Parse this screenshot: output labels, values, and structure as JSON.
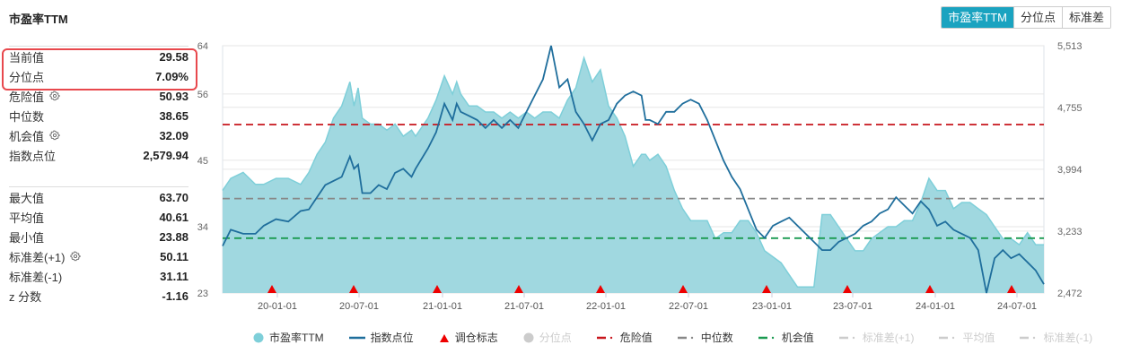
{
  "title": "市盈率TTM",
  "tabs": [
    {
      "label": "市盈率TTM",
      "active": true
    },
    {
      "label": "分位点",
      "active": false
    },
    {
      "label": "标准差",
      "active": false
    }
  ],
  "stats_top": [
    {
      "label": "当前值",
      "value": "29.58",
      "gear": false
    },
    {
      "label": "分位点",
      "value": "7.09%",
      "gear": false
    },
    {
      "label": "危险值",
      "value": "50.93",
      "gear": true
    },
    {
      "label": "中位数",
      "value": "38.65",
      "gear": false
    },
    {
      "label": "机会值",
      "value": "32.09",
      "gear": true
    },
    {
      "label": "指数点位",
      "value": "2,579.94",
      "gear": false
    }
  ],
  "stats_bottom": [
    {
      "label": "最大值",
      "value": "63.70",
      "gear": false
    },
    {
      "label": "平均值",
      "value": "40.61",
      "gear": false
    },
    {
      "label": "最小值",
      "value": "23.88",
      "gear": false
    },
    {
      "label": "标准差(+1)",
      "value": "50.11",
      "gear": true
    },
    {
      "label": "标准差(-1)",
      "value": "31.11",
      "gear": false
    },
    {
      "label": "z 分数",
      "value": "-1.16",
      "gear": false
    }
  ],
  "legend": [
    {
      "label": "市盈率TTM",
      "type": "circle",
      "color": "#7ecfd9",
      "disabled": false
    },
    {
      "label": "指数点位",
      "type": "line",
      "color": "#1f6e9c",
      "disabled": false
    },
    {
      "label": "调仓标志",
      "type": "triangle",
      "color": "#ee0000",
      "disabled": false
    },
    {
      "label": "分位点",
      "type": "circle",
      "color": "#cccccc",
      "disabled": true
    },
    {
      "label": "危险值",
      "type": "dash",
      "color": "#c8161d",
      "disabled": false
    },
    {
      "label": "中位数",
      "type": "dash",
      "color": "#888888",
      "disabled": false
    },
    {
      "label": "机会值",
      "type": "dash",
      "color": "#1a9a50",
      "disabled": false
    },
    {
      "label": "标准差(+1)",
      "type": "dash",
      "color": "#cccccc",
      "disabled": true
    },
    {
      "label": "平均值",
      "type": "dash",
      "color": "#cccccc",
      "disabled": true
    },
    {
      "label": "标准差(-1)",
      "type": "dash",
      "color": "#cccccc",
      "disabled": true
    }
  ],
  "colors": {
    "area_fill": "#a0d8e0",
    "area_stroke": "#7ecfd9",
    "index_line": "#1f6e9c",
    "danger": "#c8161d",
    "median": "#888888",
    "opportunity": "#1a9a50",
    "marker": "#ee0000",
    "grid": "#e6e6e6"
  },
  "chart_data": {
    "type": "line",
    "title": "市盈率TTM",
    "xlabel": "",
    "ylabel_left": "市盈率TTM",
    "ylabel_right": "指数点位",
    "x_ticks": [
      "20-01-01",
      "20-07-01",
      "21-01-01",
      "21-07-01",
      "22-01-01",
      "22-07-01",
      "23-01-01",
      "23-07-01",
      "24-01-01",
      "24-07-01"
    ],
    "y_left_ticks": [
      64,
      56,
      45,
      34,
      23
    ],
    "y_left_range": [
      23,
      64
    ],
    "y_right_ticks": [
      "5,513",
      "4,755",
      "3,994",
      "3,233",
      "2,472"
    ],
    "y_right_range": [
      2472,
      5513
    ],
    "x_start": "19-09-01",
    "x_end": "24-09-01",
    "reference_lines": {
      "danger": 50.93,
      "median": 38.65,
      "opportunity": 32.09
    },
    "rebalance_markers": [
      "19-12-15",
      "20-06-15",
      "20-12-15",
      "21-06-15",
      "21-12-15",
      "22-06-15",
      "22-12-15",
      "23-06-15",
      "23-12-15",
      "24-06-15"
    ],
    "series": [
      {
        "name": "市盈率TTM",
        "axis": "left",
        "x_frac": [
          0,
          0.01,
          0.025,
          0.04,
          0.05,
          0.065,
          0.08,
          0.095,
          0.105,
          0.115,
          0.125,
          0.135,
          0.145,
          0.155,
          0.16,
          0.165,
          0.17,
          0.18,
          0.19,
          0.2,
          0.21,
          0.22,
          0.23,
          0.235,
          0.25,
          0.26,
          0.27,
          0.28,
          0.285,
          0.29,
          0.3,
          0.31,
          0.32,
          0.33,
          0.34,
          0.35,
          0.36,
          0.37,
          0.38,
          0.39,
          0.4,
          0.41,
          0.42,
          0.43,
          0.44,
          0.45,
          0.46,
          0.47,
          0.48,
          0.49,
          0.5,
          0.51,
          0.515,
          0.52,
          0.53,
          0.54,
          0.55,
          0.56,
          0.57,
          0.58,
          0.59,
          0.6,
          0.61,
          0.62,
          0.63,
          0.64,
          0.65,
          0.66,
          0.67,
          0.68,
          0.69,
          0.7,
          0.71,
          0.72,
          0.73,
          0.74,
          0.75,
          0.76,
          0.77,
          0.78,
          0.79,
          0.8,
          0.81,
          0.82,
          0.83,
          0.84,
          0.85,
          0.86,
          0.87,
          0.88,
          0.89,
          0.9,
          0.91,
          0.92,
          0.93,
          0.94,
          0.95,
          0.96,
          0.97,
          0.98,
          0.99,
          1.0
        ],
        "values": [
          40,
          42,
          43,
          41,
          41,
          42,
          42,
          41,
          43,
          46,
          48,
          52,
          54,
          58,
          54,
          57,
          52,
          51,
          51,
          50,
          51,
          49,
          50,
          49,
          52,
          55,
          59,
          56,
          58,
          56,
          54,
          54,
          53,
          53,
          52,
          53,
          52,
          53,
          52,
          53,
          53,
          52,
          55,
          57,
          62,
          58,
          60,
          54,
          52,
          49,
          44,
          46,
          46,
          45,
          46,
          44,
          40,
          37,
          35,
          35,
          35,
          32,
          33,
          33,
          35,
          35,
          33,
          30,
          29,
          28,
          26,
          24,
          24,
          24,
          36,
          36,
          34,
          32,
          30,
          30,
          32,
          33,
          34,
          34,
          35,
          35,
          38,
          42,
          40,
          40,
          37,
          38,
          38,
          37,
          36,
          34,
          32,
          32,
          31,
          33,
          31,
          31
        ],
        "note": "x_frac is fraction of plot width; values approximate"
      },
      {
        "name": "指数点位",
        "axis": "right",
        "x_frac": [
          0,
          0.01,
          0.025,
          0.04,
          0.05,
          0.065,
          0.08,
          0.095,
          0.105,
          0.115,
          0.125,
          0.135,
          0.145,
          0.155,
          0.16,
          0.165,
          0.17,
          0.18,
          0.19,
          0.2,
          0.21,
          0.22,
          0.23,
          0.235,
          0.25,
          0.26,
          0.27,
          0.28,
          0.285,
          0.29,
          0.3,
          0.31,
          0.32,
          0.33,
          0.34,
          0.35,
          0.36,
          0.37,
          0.38,
          0.39,
          0.4,
          0.41,
          0.42,
          0.43,
          0.44,
          0.45,
          0.46,
          0.47,
          0.48,
          0.49,
          0.5,
          0.51,
          0.515,
          0.52,
          0.53,
          0.54,
          0.55,
          0.56,
          0.57,
          0.58,
          0.59,
          0.6,
          0.61,
          0.62,
          0.63,
          0.64,
          0.65,
          0.66,
          0.67,
          0.68,
          0.69,
          0.7,
          0.71,
          0.72,
          0.73,
          0.74,
          0.75,
          0.76,
          0.77,
          0.78,
          0.79,
          0.8,
          0.81,
          0.82,
          0.83,
          0.84,
          0.85,
          0.86,
          0.87,
          0.88,
          0.89,
          0.9,
          0.91,
          0.92,
          0.93,
          0.94,
          0.95,
          0.96,
          0.97,
          0.98,
          0.99,
          1.0
        ],
        "values": [
          3050,
          3250,
          3200,
          3200,
          3300,
          3380,
          3350,
          3480,
          3500,
          3650,
          3800,
          3850,
          3900,
          4150,
          4000,
          4050,
          3700,
          3700,
          3800,
          3750,
          3950,
          4000,
          3900,
          4000,
          4250,
          4450,
          4800,
          4600,
          4800,
          4700,
          4650,
          4600,
          4500,
          4600,
          4500,
          4600,
          4500,
          4700,
          4900,
          5100,
          5513,
          5000,
          5100,
          4700,
          4550,
          4350,
          4550,
          4600,
          4800,
          4900,
          4950,
          4900,
          4600,
          4600,
          4550,
          4700,
          4700,
          4800,
          4850,
          4800,
          4600,
          4350,
          4100,
          3900,
          3750,
          3500,
          3250,
          3150,
          3300,
          3350,
          3400,
          3300,
          3200,
          3100,
          3000,
          3000,
          3100,
          3150,
          3200,
          3300,
          3350,
          3450,
          3500,
          3650,
          3550,
          3450,
          3600,
          3500,
          3300,
          3350,
          3250,
          3200,
          3150,
          3000,
          2472,
          2900,
          3000,
          2900,
          2950,
          2850,
          2750,
          2580
        ]
      }
    ]
  }
}
